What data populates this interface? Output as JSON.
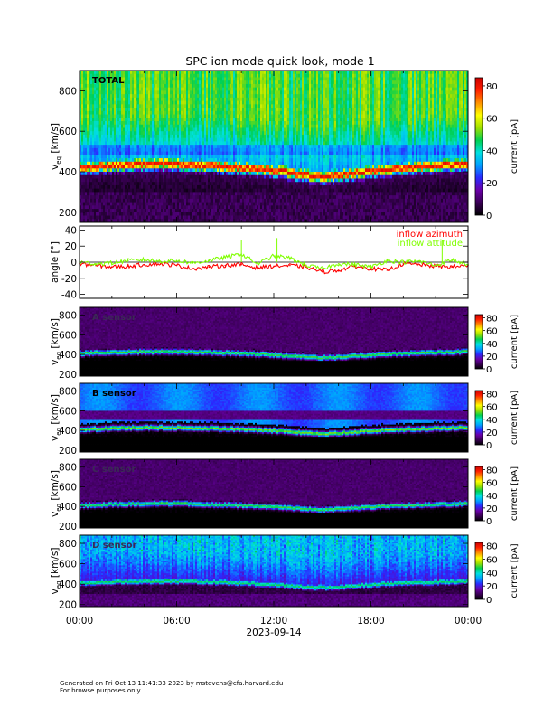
{
  "title": "SPC ion mode quick look, mode 1",
  "footer": {
    "line1": "Generated on Fri Oct 13 11:41:33 2023 by mstevens@cfa.harvard.edu",
    "line2": "For browse purposes only."
  },
  "time_axis": {
    "tick_labels": [
      "00:00",
      "06:00",
      "12:00",
      "18:00",
      "00:00"
    ],
    "date_label": "2023-09-14",
    "range_hours": [
      0,
      24
    ]
  },
  "colorbar": {
    "label": "current [pA]",
    "range": [
      0,
      85
    ],
    "colors": [
      "#000000",
      "#3a0055",
      "#6a00a8",
      "#2a2aff",
      "#00a0ff",
      "#00e0e0",
      "#00d050",
      "#a0e000",
      "#ffff00",
      "#ff9000",
      "#ff2000",
      "#cc0000"
    ]
  },
  "chart_data": [
    {
      "type": "heatmap",
      "label": "TOTAL",
      "ylabel_main": "v",
      "ylabel_sub": "eq",
      "ylabel_unit": " [km/s]",
      "ylim": [
        150,
        900
      ],
      "yticks": [
        200,
        400,
        600,
        800
      ],
      "cbar_ticks": [
        0,
        20,
        40,
        60,
        80
      ],
      "x_hours": [
        0,
        24
      ],
      "description_values": {
        "peak_velocity_km_s": 420,
        "background_top_current_pA": 30
      }
    },
    {
      "type": "line",
      "ylabel": "angle [°]",
      "ylim": [
        -45,
        45
      ],
      "yticks": [
        -40,
        -20,
        0,
        20,
        40
      ],
      "zero_line": true,
      "series": [
        {
          "name": "inflow azimuth",
          "color": "#ff0000",
          "x": [
            0,
            1,
            2,
            3,
            4,
            5,
            6,
            7,
            8,
            9,
            10,
            11,
            12,
            13,
            14,
            15,
            16,
            17,
            18,
            19,
            20,
            21,
            22,
            23,
            24
          ],
          "y": [
            -2,
            -4,
            -6,
            -5,
            -3,
            -2,
            -4,
            -8,
            -6,
            -4,
            -3,
            -7,
            -5,
            -4,
            -6,
            -12,
            -10,
            -5,
            -8,
            -10,
            -2,
            -3,
            -5,
            -6,
            -4
          ]
        },
        {
          "name": "inflow attitude",
          "color": "#80ff00",
          "x": [
            0,
            1,
            2,
            3,
            4,
            5,
            6,
            7,
            8,
            9,
            10,
            11,
            12,
            13,
            14,
            15,
            16,
            17,
            18,
            19,
            20,
            21,
            22,
            23,
            24
          ],
          "y": [
            0,
            -2,
            -1,
            2,
            3,
            1,
            2,
            -1,
            2,
            6,
            10,
            -2,
            8,
            5,
            -4,
            -8,
            -2,
            -3,
            -6,
            2,
            0,
            1,
            -4,
            3,
            -3
          ]
        }
      ]
    },
    {
      "type": "heatmap",
      "label": "A sensor",
      "ylabel_main": "v",
      "ylabel_sub": "eq",
      "ylabel_unit": " [km/s]",
      "ylim": [
        180,
        880
      ],
      "yticks": [
        200,
        400,
        600,
        800
      ],
      "cbar_ticks": [
        0,
        20,
        40,
        60,
        80
      ],
      "x_hours": [
        0,
        24
      ],
      "description_values": {
        "peak_velocity_km_s": 410
      }
    },
    {
      "type": "heatmap",
      "label": "B sensor",
      "ylabel_main": "v",
      "ylabel_sub": "eq",
      "ylabel_unit": " [km/s]",
      "ylim": [
        180,
        880
      ],
      "yticks": [
        200,
        400,
        600,
        800
      ],
      "cbar_ticks": [
        0,
        20,
        40,
        60,
        80
      ],
      "x_hours": [
        0,
        24
      ],
      "description_values": {
        "peak_velocity_km_s": 410
      }
    },
    {
      "type": "heatmap",
      "label": "C sensor",
      "ylabel_main": "v",
      "ylabel_sub": "eq",
      "ylabel_unit": " [km/s]",
      "ylim": [
        180,
        880
      ],
      "yticks": [
        200,
        400,
        600,
        800
      ],
      "cbar_ticks": [
        0,
        20,
        40,
        60,
        80
      ],
      "x_hours": [
        0,
        24
      ],
      "description_values": {
        "peak_velocity_km_s": 410
      }
    },
    {
      "type": "heatmap",
      "label": "D sensor",
      "ylabel_main": "v",
      "ylabel_sub": "eq",
      "ylabel_unit": " [km/s]",
      "ylim": [
        180,
        880
      ],
      "yticks": [
        200,
        400,
        600,
        800
      ],
      "cbar_ticks": [
        0,
        20,
        40,
        60,
        80
      ],
      "x_hours": [
        0,
        24
      ],
      "description_values": {
        "peak_velocity_km_s": 410
      }
    }
  ]
}
